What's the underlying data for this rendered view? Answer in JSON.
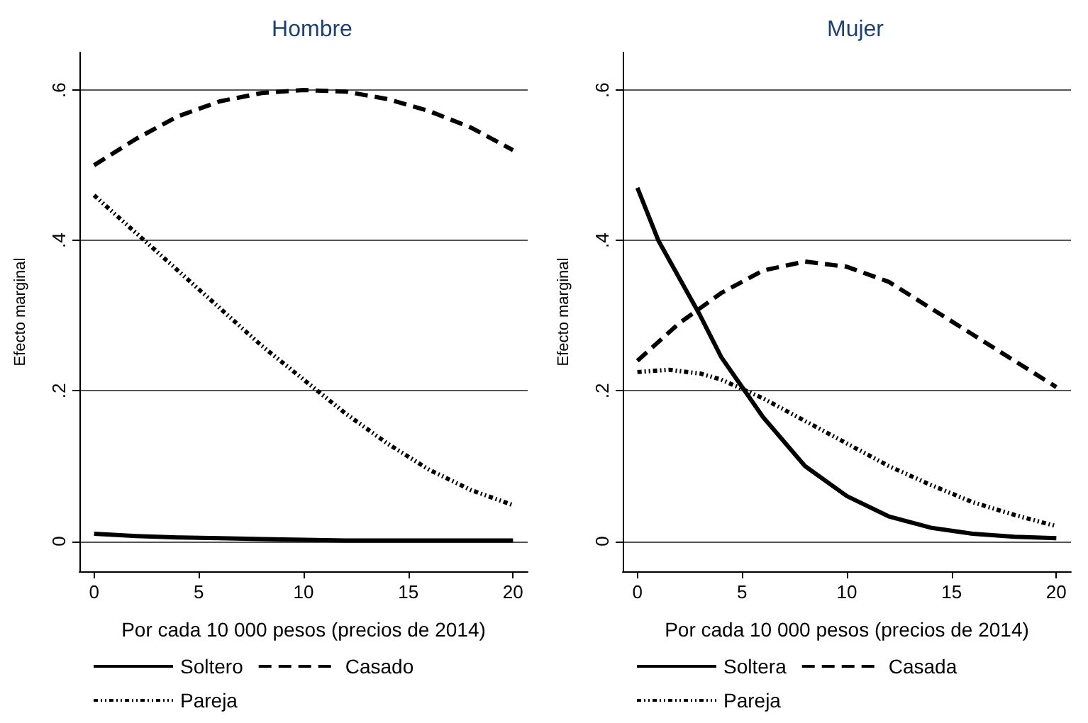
{
  "chart_data": [
    {
      "type": "line",
      "title": "Hombre",
      "xlabel": "Por cada 10 000 pesos (precios de 2014)",
      "ylabel": "Efecto marginal",
      "x": [
        0,
        2,
        4,
        6,
        8,
        10,
        12,
        14,
        16,
        18,
        20
      ],
      "series": [
        {
          "name": "Soltero",
          "color": "#000000",
          "line_style": "solid",
          "values": [
            0.01,
            0.007,
            0.005,
            0.004,
            0.003,
            0.002,
            0.001,
            0.001,
            0.001,
            0.001,
            0.001
          ]
        },
        {
          "name": "Casado",
          "color": "#000000",
          "line_style": "dashed",
          "values": [
            0.5,
            0.535,
            0.565,
            0.585,
            0.596,
            0.6,
            0.598,
            0.588,
            0.572,
            0.55,
            0.52
          ]
        },
        {
          "name": "Pareja",
          "color": "#000000",
          "line_style": "dotted",
          "values": [
            0.46,
            0.41,
            0.36,
            0.31,
            0.26,
            0.215,
            0.17,
            0.13,
            0.095,
            0.068,
            0.048
          ]
        }
      ],
      "xlim": [
        -0.7,
        20.7
      ],
      "xticks": [
        0,
        5,
        10,
        15,
        20
      ],
      "ylim": [
        -0.04,
        0.65
      ],
      "yticks": [
        0,
        {
          "value": 0.2,
          "label": ".2"
        },
        {
          "value": 0.4,
          "label": ".4"
        },
        {
          "value": 0.6,
          "label": ".6"
        }
      ],
      "grid": "y",
      "legend": "bottom",
      "marker": "none"
    },
    {
      "type": "line",
      "title": "Mujer",
      "xlabel": "Por cada 10 000 pesos (precios de 2014)",
      "ylabel": "Efecto marginal",
      "x": [
        0,
        1,
        2,
        3,
        4,
        5,
        6,
        8,
        10,
        12,
        14,
        16,
        18,
        20
      ],
      "series": [
        {
          "name": "Soltera",
          "color": "#000000",
          "line_style": "solid",
          "values": [
            0.47,
            0.4,
            0.35,
            0.3,
            0.245,
            0.205,
            0.165,
            0.1,
            0.06,
            0.033,
            0.018,
            0.01,
            0.006,
            0.004
          ]
        },
        {
          "name": "Casada",
          "color": "#000000",
          "line_style": "dashed",
          "x": [
            0,
            2,
            4,
            6,
            8,
            10,
            12,
            14,
            16,
            18,
            20
          ],
          "values": [
            0.24,
            0.29,
            0.33,
            0.36,
            0.372,
            0.365,
            0.345,
            0.31,
            0.275,
            0.24,
            0.205
          ]
        },
        {
          "name": "Pareja",
          "color": "#000000",
          "line_style": "dotted",
          "x": [
            0,
            1.5,
            3,
            4,
            6,
            8,
            10,
            12,
            14,
            16,
            18,
            20
          ],
          "values": [
            0.225,
            0.228,
            0.223,
            0.215,
            0.19,
            0.16,
            0.13,
            0.1,
            0.075,
            0.052,
            0.035,
            0.02
          ]
        }
      ],
      "xlim": [
        -0.7,
        20.7
      ],
      "xticks": [
        0,
        5,
        10,
        15,
        20
      ],
      "ylim": [
        -0.04,
        0.65
      ],
      "yticks": [
        0,
        {
          "value": 0.2,
          "label": ".2"
        },
        {
          "value": 0.4,
          "label": ".4"
        },
        {
          "value": 0.6,
          "label": ".6"
        }
      ],
      "grid": "y",
      "legend": "bottom",
      "marker": "none"
    }
  ]
}
